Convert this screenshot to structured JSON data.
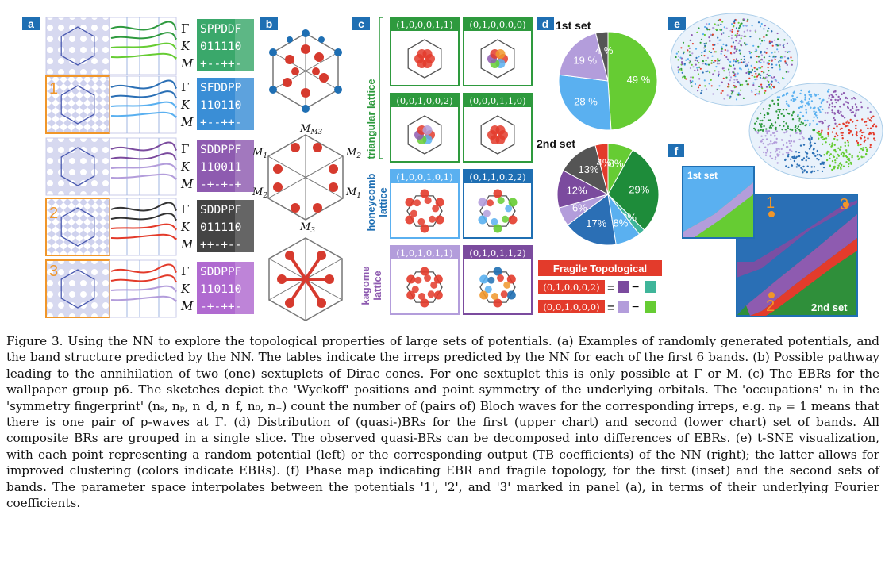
{
  "panels": {
    "a": {
      "label": "a",
      "row_markers": [
        "1",
        "2",
        "3"
      ],
      "k_labels": [
        "Γ",
        "K",
        "M"
      ],
      "tables": [
        {
          "rows": [
            "SPPDDF",
            "011110",
            "+--++-"
          ],
          "color": "#3aa86b"
        },
        {
          "rows": [
            "SFDDPP",
            "110110",
            "+--++-"
          ],
          "color": "#3a8ed6"
        },
        {
          "rows": [
            "SDDPPF",
            "110011",
            "-+-+-+"
          ],
          "color": "#8e5bb0"
        },
        {
          "rows": [
            "SDDPPF",
            "011110",
            "++-+--"
          ],
          "color": "#444444"
        },
        {
          "rows": [
            "SDDPPF",
            "110110",
            "-+-++-"
          ],
          "color": "#b06ad0"
        }
      ]
    },
    "b": {
      "label": "b",
      "m_labels": [
        "M3",
        "M2",
        "M1",
        "M2",
        "M1",
        "M3"
      ]
    },
    "c": {
      "label": "c",
      "lattices": [
        "triangular lattice",
        "honeycomb lattice",
        "kagome lattice"
      ],
      "ebrs": [
        "(1,0,0,0,1,1)",
        "(0,1,0,0,0,0)",
        "(0,0,1,0,0,2)",
        "(0,0,0,1,1,0)",
        "(1,0,0,1,0,1)",
        "(0,1,1,0,2,2)",
        "(1,0,1,0,1,1)",
        "(0,1,0,1,1,2)"
      ],
      "fragile_title": "Fragile Topological",
      "fragile_rows": [
        "(0,1,0,0,0,2)",
        "(0,0,1,0,0,0)"
      ],
      "equals": "=",
      "minus": "−"
    },
    "d": {
      "label": "d",
      "set1_label": "1st set",
      "set2_label": "2nd set"
    },
    "e": {
      "label": "e"
    },
    "f": {
      "label": "f",
      "inset_label": "1st set",
      "main_label": "2nd set",
      "markers": [
        "1",
        "2",
        "3"
      ]
    }
  },
  "chart_data": [
    {
      "type": "pie",
      "title": "1st set",
      "slices": [
        {
          "value": 49,
          "label": "49 %",
          "color": "#66cc33"
        },
        {
          "value": 28,
          "label": "28 %",
          "color": "#5ab0f0"
        },
        {
          "value": 19,
          "label": "19 %",
          "color": "#b39ddb"
        },
        {
          "value": 4,
          "label": "4 %",
          "color": "#555555"
        }
      ]
    },
    {
      "type": "pie",
      "title": "2nd set",
      "slices": [
        {
          "value": 8,
          "label": "8%",
          "color": "#66cc33"
        },
        {
          "value": 29,
          "label": "29%",
          "color": "#1e8c3a"
        },
        {
          "value": 2,
          "label": "2%",
          "color": "#3fb59a"
        },
        {
          "value": 8,
          "label": "8%",
          "color": "#5ab0f0"
        },
        {
          "value": 17,
          "label": "17%",
          "color": "#2b6fb5"
        },
        {
          "value": 6,
          "label": "6%",
          "color": "#b39ddb"
        },
        {
          "value": 12,
          "label": "12%",
          "color": "#7b4b9e"
        },
        {
          "value": 13,
          "label": "13%",
          "color": "#555555"
        },
        {
          "value": 4,
          "label": "4%",
          "color": "#e33b2b"
        }
      ]
    }
  ],
  "caption": "Figure 3. Using the NN to explore the topological properties of large sets of potentials. (a) Examples of randomly generated potentials, and the band structure predicted by the NN. The tables indicate the irreps predicted by the NN for each of the first 6 bands. (b) Possible pathway leading to the annihilation of two (one) sextuplets of Dirac cones. For one sextuplet this is only possible at Γ or M. (c) The EBRs for the wallpaper group p6. The sketches depict the 'Wyckoff' positions and point symmetry of the underlying orbitals. The 'occupations' nᵢ in the 'symmetry fingerprint' (nₛ, nₚ, n_d, n_f, n₀, n₊) count the number of (pairs of) Bloch waves for the corresponding irreps, e.g. nₚ = 1 means that there is one pair of p-waves at Γ. (d) Distribution of (quasi-)BRs for the first (upper chart) and second (lower chart) set of bands. All composite BRs are grouped in a single slice. The observed quasi-BRs can be decomposed into differences of EBRs. (e) t-SNE visualization, with each point representing a random potential (left) or the corresponding output (TB coefficients) of the NN (right); the latter allows for improved clustering (colors indicate EBRs). (f) Phase map indicating EBR and fragile topology, for the first (inset) and the second sets of bands. The parameter space interpolates between the potentials '1', '2', and '3' marked in panel (a), in terms of their underlying Fourier coefficients."
}
